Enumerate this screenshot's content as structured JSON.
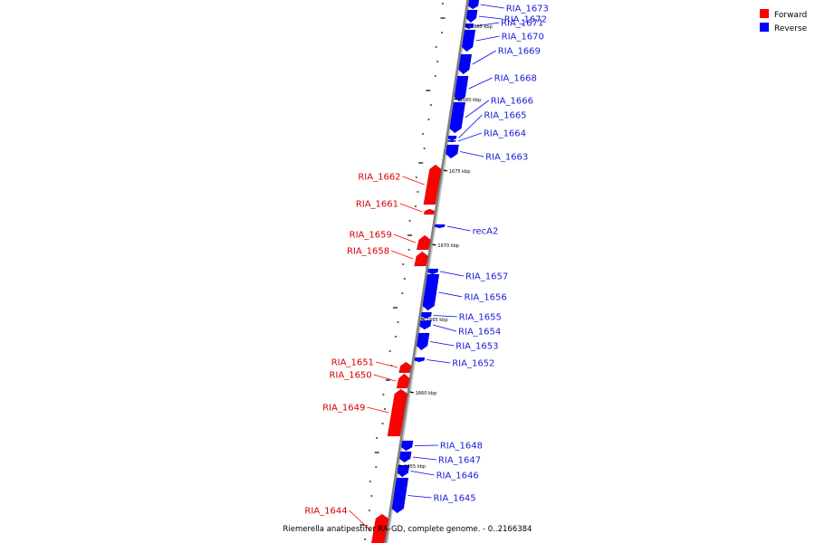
{
  "caption": "Riemerella anatipestifer RA-GD, complete genome. - 0..2166384",
  "legend": [
    {
      "label": "Forward",
      "color": "#ff0000"
    },
    {
      "label": "Reverse",
      "color": "#0000ff"
    }
  ],
  "colors": {
    "forward": "#ff0000",
    "reverse": "#0000ff",
    "forward_label": "#d40000",
    "reverse_label": "#1a1ad6",
    "backbone": "#808080"
  },
  "kbp_labels": [
    "1685 kbp",
    "1680 kbp",
    "1675 kbp",
    "1670 kbp",
    "1665 kbp",
    "1660 kbp",
    "1655 kbp"
  ],
  "genes": [
    {
      "name": "RIA_1673",
      "strand": "reverse"
    },
    {
      "name": "RIA_1672",
      "strand": "reverse"
    },
    {
      "name": "RIA_1671",
      "strand": "reverse"
    },
    {
      "name": "RIA_1670",
      "strand": "reverse"
    },
    {
      "name": "RIA_1669",
      "strand": "reverse"
    },
    {
      "name": "RIA_1668",
      "strand": "reverse"
    },
    {
      "name": "RIA_1666",
      "strand": "reverse"
    },
    {
      "name": "RIA_1665",
      "strand": "reverse"
    },
    {
      "name": "RIA_1664",
      "strand": "reverse"
    },
    {
      "name": "RIA_1663",
      "strand": "reverse"
    },
    {
      "name": "RIA_1662",
      "strand": "forward"
    },
    {
      "name": "RIA_1661",
      "strand": "forward"
    },
    {
      "name": "recA2",
      "strand": "reverse"
    },
    {
      "name": "RIA_1659",
      "strand": "forward"
    },
    {
      "name": "RIA_1658",
      "strand": "forward"
    },
    {
      "name": "RIA_1657",
      "strand": "reverse"
    },
    {
      "name": "RIA_1656",
      "strand": "reverse"
    },
    {
      "name": "RIA_1655",
      "strand": "reverse"
    },
    {
      "name": "RIA_1654",
      "strand": "reverse"
    },
    {
      "name": "RIA_1653",
      "strand": "reverse"
    },
    {
      "name": "RIA_1652",
      "strand": "reverse"
    },
    {
      "name": "RIA_1651",
      "strand": "forward"
    },
    {
      "name": "RIA_1650",
      "strand": "forward"
    },
    {
      "name": "RIA_1649",
      "strand": "forward"
    },
    {
      "name": "RIA_1648",
      "strand": "reverse"
    },
    {
      "name": "RIA_1647",
      "strand": "reverse"
    },
    {
      "name": "RIA_1646",
      "strand": "reverse"
    },
    {
      "name": "RIA_1645",
      "strand": "reverse"
    },
    {
      "name": "RIA_1644",
      "strand": "forward"
    }
  ]
}
